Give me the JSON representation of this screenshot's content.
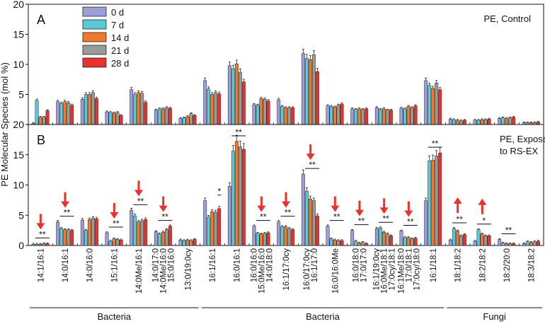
{
  "chart_data": {
    "type": "bar",
    "ylabel": "PE Molecular Species (mol %)",
    "legend": {
      "placement": "top-left",
      "entries": [
        {
          "label": "0 d",
          "color": "#9E9ED6"
        },
        {
          "label": "7 d",
          "color": "#5BC9D6"
        },
        {
          "label": "14 d",
          "color": "#F07A2A"
        },
        {
          "label": "21 d",
          "color": "#9A9A9A"
        },
        {
          "label": "28 d",
          "color": "#E8322E"
        }
      ]
    },
    "categories": [
      "14:1/16:1",
      "14:0/16:1",
      "14:0/16:0",
      "15:1/16:1",
      "14:0Me/16:1",
      "14:0/17:0\n14:0Me/16:0\n15:0/16:0",
      "13:0/19:0cy",
      "16:1/16:1",
      "16:0/16:1",
      "16:0/16:0\n15:0Me/16:0\n14:0/18:0",
      "16:1/17:0cy",
      "16:0/17:0cy\n16:1/17:0",
      "16:0/16:0Me",
      "16:0/18:0\n17:0/17:0",
      "16:1/19:0cy\n16:0Me/18:1\n17:0cy/18:1",
      "16:1Me/18:0\n17:0/18:1\n17:0cy/18:0",
      "16:1/18:1",
      "18:1/18:2",
      "18:2/18:2",
      "18:2/20:0",
      "18:3/18:2"
    ],
    "group_labels": [
      {
        "label": "Bacteria",
        "from": 0,
        "to": 6
      },
      {
        "label": "Bacteria",
        "from": 7,
        "to": 16
      },
      {
        "label": "Fungi",
        "from": 17,
        "to": 20
      }
    ],
    "panels": [
      {
        "letter": "A",
        "title": "PE, Control",
        "ylim": [
          0,
          20
        ],
        "yticks": [
          0,
          5,
          10,
          15,
          20
        ],
        "values": [
          [
            0.2,
            4.0,
            1.2,
            1.2,
            2.3
          ],
          [
            3.8,
            3.5,
            3.8,
            3.6,
            3.2
          ],
          [
            4.2,
            5.0,
            5.0,
            5.3,
            4.3
          ],
          [
            2.1,
            2.0,
            1.9,
            2.0,
            1.5
          ],
          [
            5.8,
            5.0,
            5.3,
            5.2,
            3.7
          ],
          [
            2.4,
            2.6,
            2.6,
            2.8,
            2.7
          ],
          [
            1.0,
            1.1,
            1.3,
            1.8,
            1.5
          ],
          [
            7.3,
            5.9,
            5.0,
            5.3,
            5.1
          ],
          [
            9.8,
            9.3,
            10.1,
            8.7,
            7.1
          ],
          [
            3.3,
            3.2,
            4.3,
            4.2,
            3.9
          ],
          [
            4.1,
            3.0,
            2.8,
            2.8,
            2.8
          ],
          [
            11.8,
            11.0,
            10.8,
            11.6,
            8.8
          ],
          [
            3.1,
            3.0,
            2.9,
            3.2,
            3.4
          ],
          [
            2.6,
            2.5,
            2.6,
            2.5,
            2.6
          ],
          [
            2.8,
            2.5,
            2.6,
            2.4,
            2.4
          ],
          [
            2.7,
            2.6,
            3.0,
            2.8,
            3.1
          ],
          [
            7.3,
            6.5,
            6.0,
            6.9,
            5.8
          ],
          [
            0.9,
            0.8,
            0.7,
            0.6,
            0.7
          ],
          [
            0.7,
            0.7,
            0.8,
            0.8,
            0.9
          ],
          [
            1.0,
            1.1,
            1.0,
            1.1,
            1.2
          ],
          [
            0.3,
            0.3,
            0.3,
            0.3,
            0.4
          ]
        ],
        "annotations": []
      },
      {
        "letter": "B",
        "title": "PE, Exposed to RS-EX",
        "title_lines": [
          "PE, Exposed",
          "to RS-EX"
        ],
        "ylim": [
          0,
          20
        ],
        "yticks": [
          0,
          5,
          10,
          15,
          20
        ],
        "values": [
          [
            0.2,
            0.2,
            0.2,
            0.3,
            0.3
          ],
          [
            3.9,
            2.8,
            2.6,
            2.6,
            2.5
          ],
          [
            4.2,
            2.5,
            4.3,
            4.5,
            4.4
          ],
          [
            2.1,
            0.7,
            1.1,
            1.0,
            0.9
          ],
          [
            5.8,
            4.9,
            3.9,
            4.1,
            4.3
          ],
          [
            2.3,
            1.9,
            2.2,
            2.6,
            3.2
          ],
          [
            0.9,
            0.8,
            0.9,
            0.8,
            1.0
          ],
          [
            7.4,
            4.7,
            5.6,
            5.5,
            6.1
          ],
          [
            9.8,
            15.6,
            17.2,
            16.3,
            15.9
          ],
          [
            3.2,
            2.0,
            1.9,
            2.0,
            2.1
          ],
          [
            3.9,
            3.1,
            3.1,
            2.8,
            2.6
          ],
          [
            11.8,
            9.0,
            7.7,
            7.4,
            4.9
          ],
          [
            3.2,
            1.1,
            0.9,
            0.8,
            0.8
          ],
          [
            2.5,
            0.7,
            0.4,
            0.5,
            0.3
          ],
          [
            2.8,
            2.9,
            2.2,
            1.9,
            1.6
          ],
          [
            2.4,
            1.3,
            1.3,
            1.1,
            1.2
          ],
          [
            7.4,
            14.0,
            14.1,
            14.8,
            15.3
          ],
          [
            0.9,
            2.8,
            2.4,
            1.6,
            1.8
          ],
          [
            0.7,
            2.6,
            1.9,
            1.6,
            1.6
          ],
          [
            1.0,
            0.4,
            0.3,
            0.3,
            0.3
          ],
          [
            0.3,
            0.6,
            0.5,
            0.6,
            0.7
          ]
        ],
        "annotations": [
          {
            "category": 0,
            "text": "**",
            "arrow": "down"
          },
          {
            "category": 1,
            "text": "**",
            "arrow": "down"
          },
          {
            "category": 3,
            "text": "**",
            "arrow": "down"
          },
          {
            "category": 4,
            "text": "**",
            "arrow": "down"
          },
          {
            "category": 5,
            "text": "**",
            "arrow": "down"
          },
          {
            "category": 7,
            "text": "*",
            "arrow": "none",
            "single": true
          },
          {
            "category": 8,
            "text": "**",
            "arrow": "none"
          },
          {
            "category": 9,
            "text": "**",
            "arrow": "down"
          },
          {
            "category": 10,
            "text": "**",
            "arrow": "down"
          },
          {
            "category": 11,
            "text": "**",
            "arrow": "down"
          },
          {
            "category": 12,
            "text": "**",
            "arrow": "down"
          },
          {
            "category": 13,
            "text": "**",
            "arrow": "down"
          },
          {
            "category": 14,
            "text": "**",
            "arrow": "down"
          },
          {
            "category": 15,
            "text": "**",
            "arrow": "down"
          },
          {
            "category": 16,
            "text": "**",
            "arrow": "none"
          },
          {
            "category": 17,
            "text": "**",
            "arrow": "up"
          },
          {
            "category": 18,
            "text": "*",
            "arrow": "up"
          },
          {
            "category": 19,
            "text": "**",
            "arrow": "none"
          }
        ]
      }
    ],
    "colors": {
      "arrow": "#E8322E",
      "axis": "#111111"
    }
  }
}
